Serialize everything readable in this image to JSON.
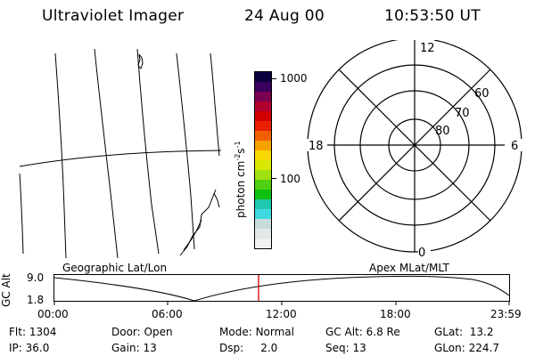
{
  "header": {
    "title": "Ultraviolet Imager",
    "date": "24 Aug 00",
    "time": "10:53:50 UT"
  },
  "colorbar": {
    "unit_label": "photon cm",
    "unit_exp1": "-2",
    "unit_mid": "s",
    "unit_exp2": "-1",
    "ticks": [
      "1000",
      "100"
    ],
    "colors": [
      "#f0f0f0",
      "#e0e8e8",
      "#c8dcdc",
      "#40d8e0",
      "#20c8b0",
      "#10c010",
      "#50d010",
      "#a0e010",
      "#d8e800",
      "#f8d800",
      "#f8a000",
      "#f06000",
      "#e82000",
      "#d00000",
      "#b00030",
      "#7a0050",
      "#3a0060",
      "#0a0040"
    ]
  },
  "polar_plot": {
    "mlt_labels": {
      "top": "12",
      "left": "18",
      "right": "6",
      "bottom": "0"
    },
    "lat_labels": [
      "60",
      "70",
      "80"
    ]
  },
  "timeline": {
    "y_axis_label": "GC Alt",
    "y_ticks": [
      "9.0",
      "1.8"
    ],
    "left_label": "Geographic Lat/Lon",
    "right_label": "Apex MLat/MLT",
    "x_ticks": [
      "00:00",
      "06:00",
      "12:00",
      "18:00",
      "23:59"
    ],
    "marker_color": "#d00000"
  },
  "info": {
    "row1": [
      {
        "label": "Flt:",
        "value": "1304"
      },
      {
        "label": "Door:",
        "value": "Open"
      },
      {
        "label": "Mode:",
        "value": "Normal"
      },
      {
        "label": "GC Alt:",
        "value": "6.8 Re"
      },
      {
        "label": "GLat:",
        "value": "13.2"
      }
    ],
    "row2": [
      {
        "label": "IP:",
        "value": "36.0"
      },
      {
        "label": "Gain:",
        "value": "13"
      },
      {
        "label": "Dsp:",
        "value": "2.0"
      },
      {
        "label": "Seq:",
        "value": "13"
      },
      {
        "label": "GLon:",
        "value": "224.7"
      }
    ]
  }
}
